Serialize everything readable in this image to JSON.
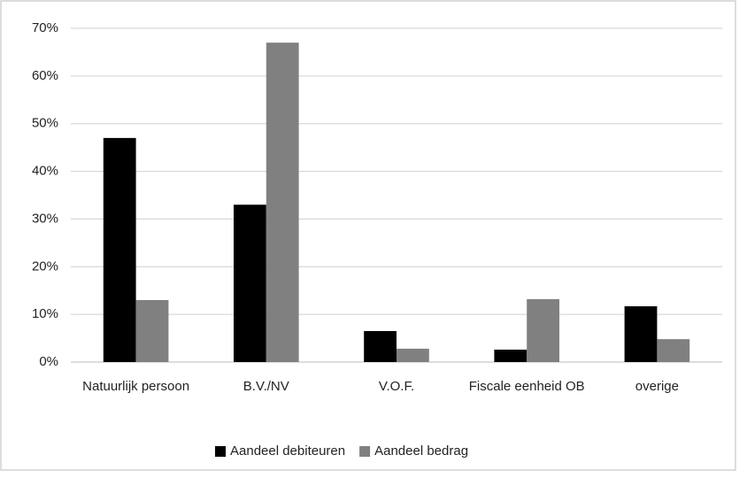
{
  "chart_data": {
    "type": "bar",
    "categories": [
      "Natuurlijk persoon",
      "B.V./NV",
      "V.O.F.",
      "Fiscale eenheid OB",
      "overige"
    ],
    "series": [
      {
        "name": "Aandeel debiteuren",
        "color": "#000000",
        "values": [
          47,
          33,
          6.5,
          2.6,
          11.7
        ]
      },
      {
        "name": "Aandeel bedrag",
        "color": "#808080",
        "values": [
          13,
          67,
          2.8,
          13.2,
          4.8
        ]
      }
    ],
    "ylim": [
      0,
      70
    ],
    "yticks": [
      {
        "value": 0,
        "label": "0%"
      },
      {
        "value": 10,
        "label": "10%"
      },
      {
        "value": 20,
        "label": "20%"
      },
      {
        "value": 30,
        "label": "30%"
      },
      {
        "value": 40,
        "label": "40%"
      },
      {
        "value": 50,
        "label": "50%"
      },
      {
        "value": 60,
        "label": "60%"
      },
      {
        "value": 70,
        "label": "70%"
      }
    ],
    "grid": true,
    "legend": "bottom"
  }
}
